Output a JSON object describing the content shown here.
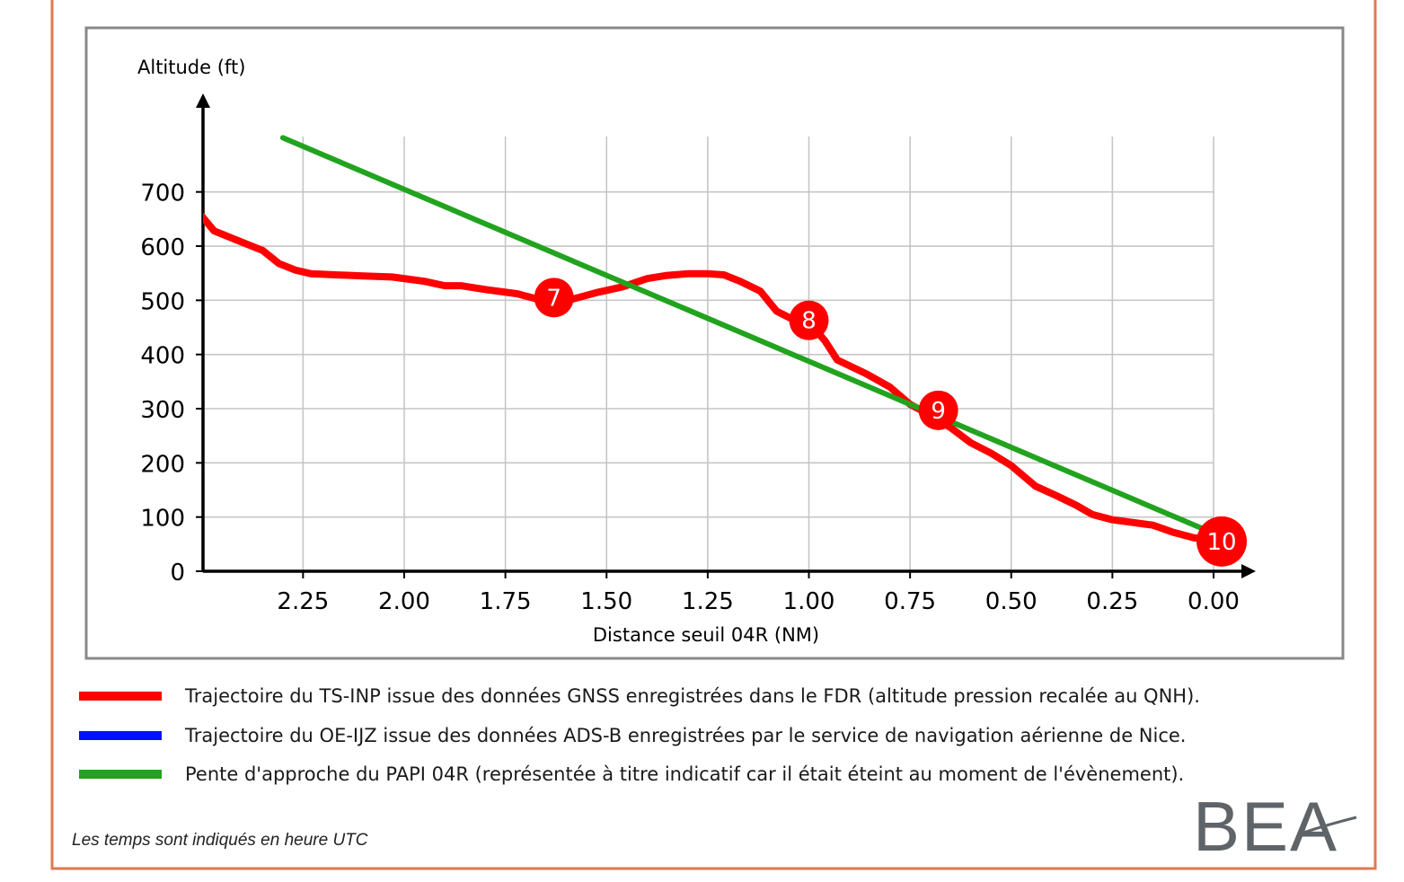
{
  "chart_data": {
    "type": "line",
    "xlabel": "Distance seuil 04R (NM)",
    "ylabel": "Altitude (ft)",
    "xlim": [
      2.5,
      -0.1
    ],
    "ylim": [
      0,
      800
    ],
    "x_reversed": true,
    "x_ticks": [
      2.25,
      2.0,
      1.75,
      1.5,
      1.25,
      1.0,
      0.75,
      0.5,
      0.25,
      0.0
    ],
    "x_tick_labels": [
      "2.25",
      "2.00",
      "1.75",
      "1.50",
      "1.25",
      "1.00",
      "0.75",
      "0.50",
      "0.25",
      "0.00"
    ],
    "y_ticks": [
      0,
      100,
      200,
      300,
      400,
      500,
      600,
      700
    ],
    "y_tick_labels": [
      "0",
      "100",
      "200",
      "300",
      "400",
      "500",
      "600",
      "700"
    ],
    "grid": true,
    "series": [
      {
        "color": "#ff0000",
        "x": [
          2.5,
          2.47,
          2.4,
          2.35,
          2.31,
          2.27,
          2.23,
          2.17,
          2.1,
          2.03,
          1.95,
          1.9,
          1.86,
          1.8,
          1.72,
          1.66,
          1.62,
          1.57,
          1.52,
          1.46,
          1.4,
          1.35,
          1.3,
          1.25,
          1.21,
          1.17,
          1.12,
          1.08,
          1.04,
          1.0,
          0.96,
          0.93,
          0.86,
          0.8,
          0.75,
          0.7,
          0.65,
          0.6,
          0.55,
          0.5,
          0.44,
          0.39,
          0.34,
          0.3,
          0.25,
          0.2,
          0.15,
          0.1,
          0.05,
          0.0
        ],
        "y": [
          655,
          628,
          607,
          592,
          568,
          556,
          549,
          547,
          545,
          543,
          535,
          527,
          527,
          520,
          512,
          500,
          495,
          505,
          515,
          525,
          540,
          546,
          549,
          549,
          547,
          535,
          517,
          480,
          465,
          460,
          425,
          390,
          365,
          340,
          308,
          288,
          265,
          237,
          218,
          195,
          157,
          140,
          122,
          105,
          95,
          90,
          85,
          72,
          62,
          57
        ]
      },
      {
        "color": "#22a31f",
        "x": [
          2.3,
          0.0
        ],
        "y": [
          800,
          70
        ]
      }
    ],
    "markers": [
      {
        "label": "7",
        "x": 1.63,
        "y": 505
      },
      {
        "label": "8",
        "x": 1.0,
        "y": 463
      },
      {
        "label": "9",
        "x": 0.68,
        "y": 297
      },
      {
        "label": "10",
        "x": -0.02,
        "y": 55
      }
    ]
  },
  "legend": [
    {
      "color": "#ff0000",
      "text": "Trajectoire du TS-INP issue des données GNSS enregistrées dans le FDR (altitude pression recalée au QNH)."
    },
    {
      "color": "#0011ff",
      "text": "Trajectoire du OE-IJZ issue des données ADS-B enregistrées par le service de navigation aérienne de Nice."
    },
    {
      "color": "#22a31f",
      "text": "Pente d'approche du PAPI 04R (représentée à titre indicatif car il était éteint au moment de l'évènement)."
    }
  ],
  "footnote": "Les temps sont indiqués en heure UTC",
  "logo_text": "BEA",
  "colors": {
    "frame_border": "#e07a4f",
    "plot_border": "#888888",
    "grid": "#c6c6c6"
  }
}
